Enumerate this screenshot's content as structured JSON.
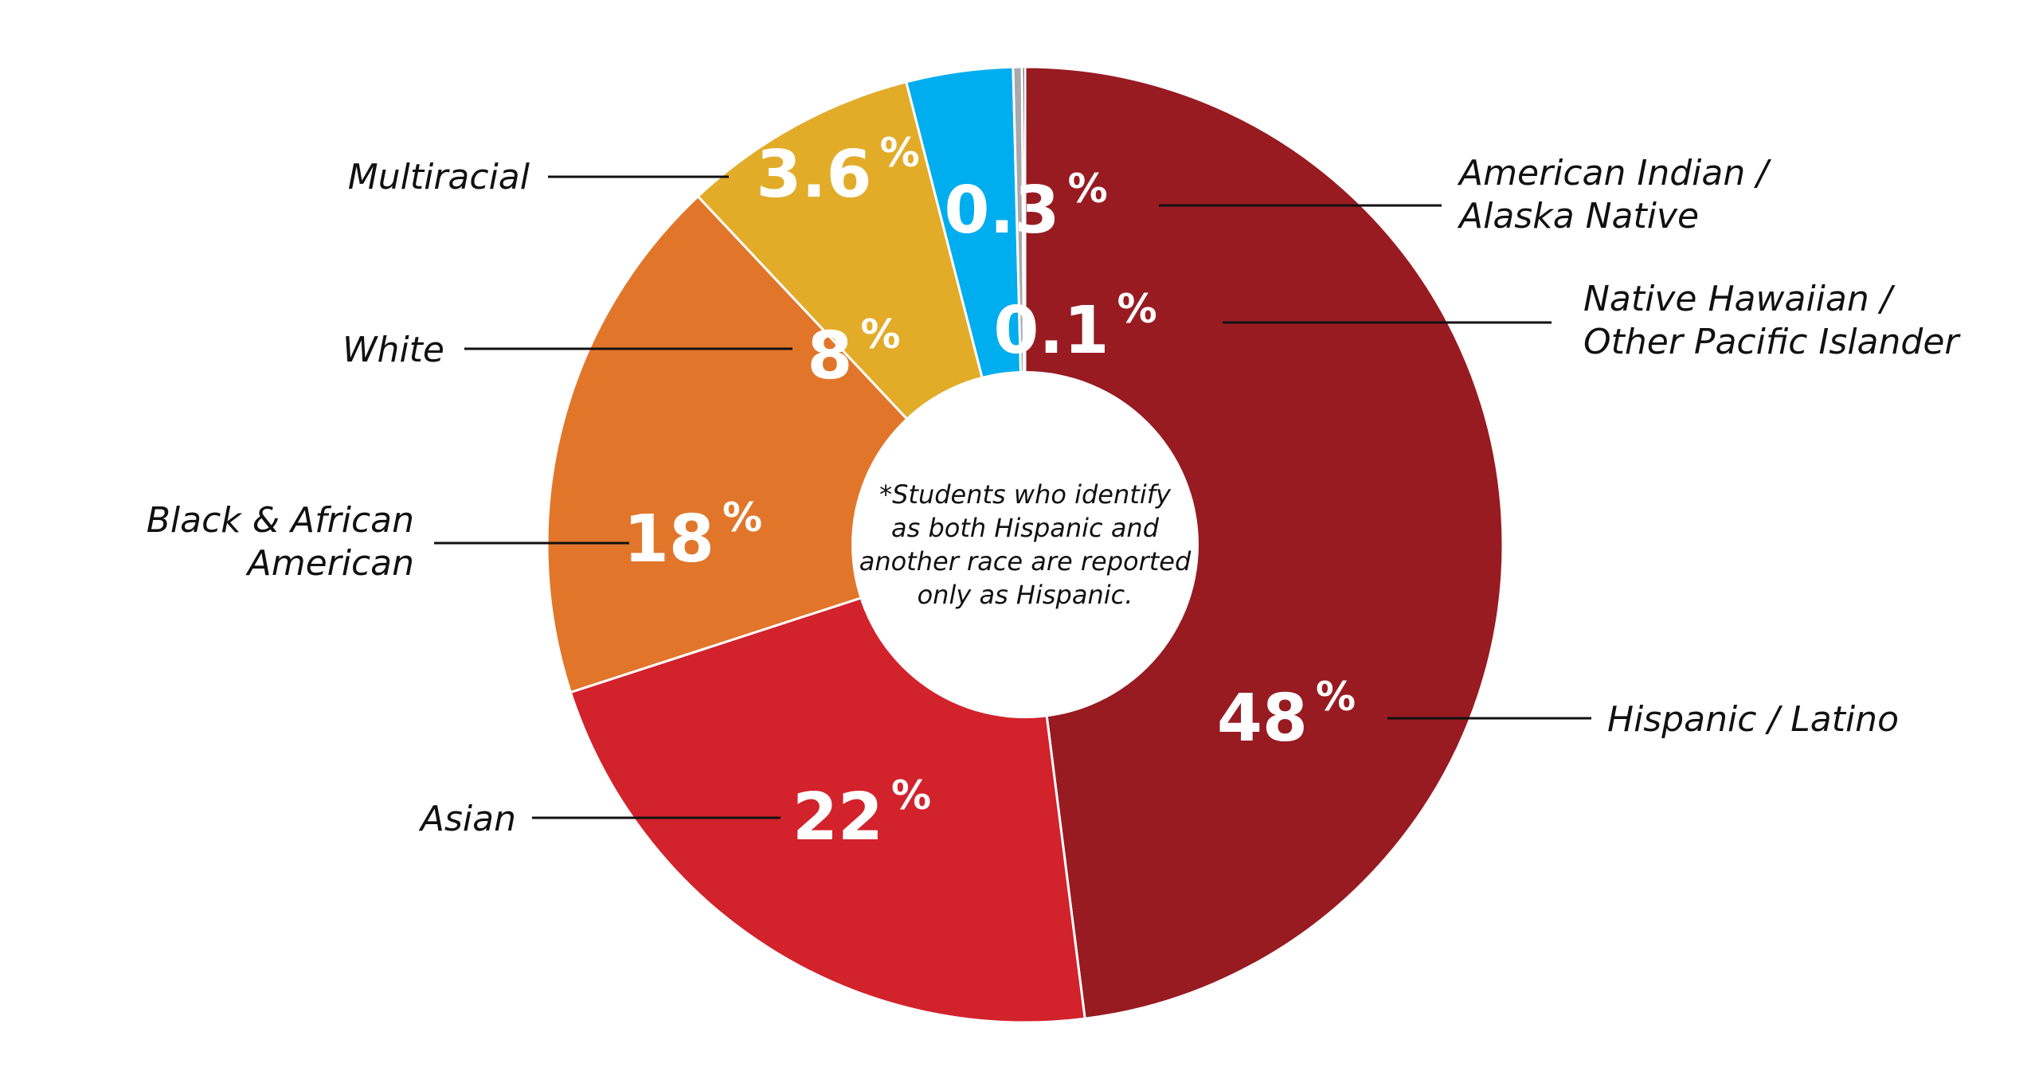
{
  "chart_data": {
    "type": "pie",
    "title": "",
    "categories": [
      "Hispanic / Latino",
      "Asian",
      "Black & African American",
      "White",
      "Multiracial",
      "American Indian / Alaska Native",
      "Native Hawaiian / Other Pacific Islander"
    ],
    "values": [
      48,
      22,
      18,
      8,
      3.6,
      0.3,
      0.1
    ],
    "value_labels": [
      "48",
      "22",
      "18",
      "8",
      "3.6",
      "0.3",
      "0.1"
    ],
    "unit_symbol": "%",
    "colors": [
      "#981b22",
      "#d2222b",
      "#e1762a",
      "#e2ac29",
      "#00adee",
      "#a7a9ac",
      "#000000"
    ],
    "center_note": "*Students who identify as both Hispanic and another race are reported only as Hispanic.",
    "center_note_lines": [
      "*Students who identify",
      "as both Hispanic and",
      "another race are reported",
      "only as Hispanic."
    ],
    "category_label_lines": [
      [
        "Hispanic / Latino"
      ],
      [
        "Asian"
      ],
      [
        "Black & African",
        "American"
      ],
      [
        "White"
      ],
      [
        "Multiracial"
      ],
      [
        "American Indian /",
        "Alaska Native"
      ],
      [
        "Native Hawaiian /",
        "Other Pacific Islander"
      ]
    ]
  }
}
